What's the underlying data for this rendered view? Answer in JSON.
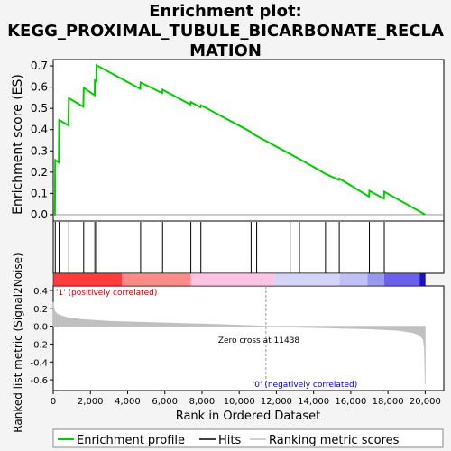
{
  "title_lines": [
    "Enrichment plot:",
    "KEGG_PROXIMAL_TUBULE_BICARBONATE_RECLA",
    "MATION"
  ],
  "chart_data": [
    {
      "type": "line",
      "name": "enrichment-profile",
      "ylabel": "Enrichment score (ES)",
      "xlim": [
        0,
        21000
      ],
      "ylim": [
        -0.03,
        0.73
      ],
      "yticks": [
        0.0,
        0.1,
        0.2,
        0.3,
        0.4,
        0.5,
        0.6,
        0.7
      ],
      "ytick_labels": [
        "0.0",
        "0.1",
        "0.2",
        "0.3",
        "0.4",
        "0.5",
        "0.6",
        "0.7"
      ],
      "color": "#00cc00",
      "points": [
        [
          0,
          0
        ],
        [
          90,
          0
        ],
        [
          110,
          0.257
        ],
        [
          300,
          0.245
        ],
        [
          320,
          0.445
        ],
        [
          820,
          0.42
        ],
        [
          840,
          0.548
        ],
        [
          1620,
          0.508
        ],
        [
          1640,
          0.597
        ],
        [
          2230,
          0.562
        ],
        [
          2240,
          0.632
        ],
        [
          2320,
          0.628
        ],
        [
          2330,
          0.703
        ],
        [
          4680,
          0.592
        ],
        [
          4700,
          0.622
        ],
        [
          5860,
          0.572
        ],
        [
          5880,
          0.588
        ],
        [
          7380,
          0.518
        ],
        [
          7400,
          0.53
        ],
        [
          7920,
          0.505
        ],
        [
          7940,
          0.515
        ],
        [
          10620,
          0.39
        ],
        [
          10640,
          0.385
        ],
        [
          10940,
          0.37
        ],
        [
          12740,
          0.285
        ],
        [
          13240,
          0.262
        ],
        [
          14620,
          0.193
        ],
        [
          14640,
          0.192
        ],
        [
          15360,
          0.163
        ],
        [
          15380,
          0.17
        ],
        [
          16980,
          0.085
        ],
        [
          17000,
          0.112
        ],
        [
          17780,
          0.075
        ],
        [
          17800,
          0.108
        ],
        [
          20000,
          0.0
        ]
      ]
    },
    {
      "type": "scatter",
      "name": "hits",
      "hit_positions": [
        110,
        320,
        840,
        1640,
        2240,
        2330,
        4700,
        5880,
        7400,
        7940,
        10640,
        10940,
        12740,
        13240,
        14640,
        15380,
        17000,
        17800
      ]
    },
    {
      "type": "heatmap",
      "name": "ranked-list-colorbar",
      "segments": [
        {
          "from": 0,
          "to": 3700,
          "color": "#ff3c3c"
        },
        {
          "from": 3700,
          "to": 7400,
          "color": "#ff8a8a"
        },
        {
          "from": 7400,
          "to": 11900,
          "color": "#ffc4e4"
        },
        {
          "from": 11900,
          "to": 15400,
          "color": "#d4d4f8"
        },
        {
          "from": 15400,
          "to": 16900,
          "color": "#c0c0f4"
        },
        {
          "from": 16900,
          "to": 17800,
          "color": "#9898ee"
        },
        {
          "from": 17800,
          "to": 19700,
          "color": "#6a60ec"
        },
        {
          "from": 19700,
          "to": 20000,
          "color": "#1a10c8"
        }
      ]
    },
    {
      "type": "area",
      "name": "ranked-list-metric",
      "xlabel": "Rank in Ordered Dataset",
      "ylabel": "Ranked list metric (Signal2Noise)",
      "xlim": [
        0,
        21000
      ],
      "ylim": [
        -0.72,
        0.45
      ],
      "xticks": [
        0,
        2000,
        4000,
        6000,
        8000,
        10000,
        12000,
        14000,
        16000,
        18000,
        20000
      ],
      "xtick_labels": [
        "0",
        "2,000",
        "4,000",
        "6,000",
        "8,000",
        "10,000",
        "12,000",
        "14,000",
        "16,000",
        "18,000",
        "20,000"
      ],
      "yticks": [
        0.4,
        0.2,
        0.0,
        -0.2,
        -0.4,
        -0.6
      ],
      "ytick_labels": [
        "0.4",
        "0.2",
        "0.0",
        "-0.2",
        "-0.4",
        "-0.6"
      ],
      "color": "#c0c0c0",
      "points": [
        [
          0,
          0.27
        ],
        [
          30,
          0.21
        ],
        [
          80,
          0.17
        ],
        [
          200,
          0.14
        ],
        [
          400,
          0.12
        ],
        [
          800,
          0.095
        ],
        [
          1500,
          0.075
        ],
        [
          3000,
          0.055
        ],
        [
          5000,
          0.042
        ],
        [
          7000,
          0.03
        ],
        [
          9000,
          0.018
        ],
        [
          11438,
          0
        ],
        [
          13000,
          -0.01
        ],
        [
          15000,
          -0.02
        ],
        [
          17000,
          -0.03
        ],
        [
          18500,
          -0.045
        ],
        [
          19300,
          -0.07
        ],
        [
          19700,
          -0.1
        ],
        [
          19900,
          -0.15
        ],
        [
          19960,
          -0.25
        ],
        [
          20000,
          -0.65
        ]
      ],
      "annotations": {
        "positive": "'1' (positively correlated)",
        "negative": "'0' (negatively correlated)",
        "zero_cross": "Zero cross at 11438",
        "zero_cross_value": 11438
      }
    }
  ],
  "legend": {
    "items": [
      {
        "label": "Enrichment profile",
        "color": "#00cc00"
      },
      {
        "label": "Hits",
        "color": "#000000"
      },
      {
        "label": "Ranking metric scores",
        "color": "#c0c0c0"
      }
    ]
  }
}
